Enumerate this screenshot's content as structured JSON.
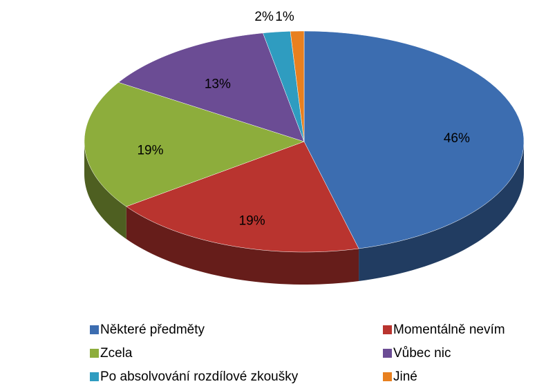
{
  "chart_data": {
    "type": "pie",
    "categories": [
      "Některé předměty",
      "Momentálně nevím",
      "Zcela",
      "Vůbec nic",
      "Po absolvování rozdílové zkoušky",
      "Jiné"
    ],
    "values": [
      46,
      19,
      19,
      13,
      2,
      1
    ],
    "value_labels": [
      "46%",
      "19%",
      "19%",
      "13%",
      "2%",
      "1%"
    ],
    "colors": [
      "#3c6db0",
      "#b9342f",
      "#8dad3c",
      "#6b4c94",
      "#2f9cc0",
      "#e8801f"
    ],
    "legend": "bottom"
  }
}
